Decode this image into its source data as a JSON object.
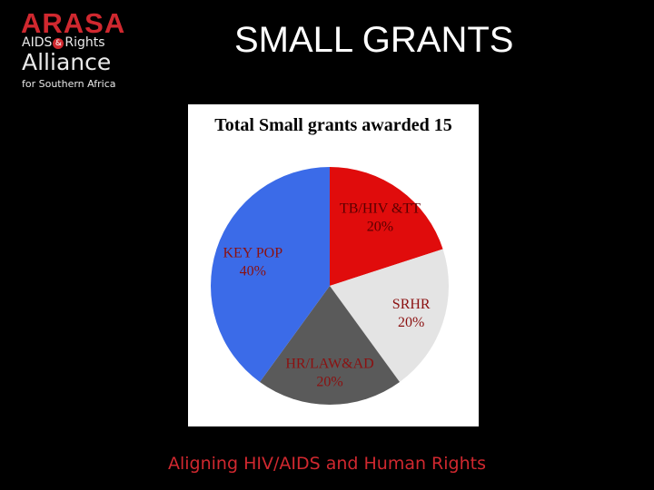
{
  "logo": {
    "name": "ARASA",
    "line2_a": "AIDS",
    "amp": "&",
    "line2_b": "Rights",
    "line3": "Alliance",
    "tagline": "for Southern Africa"
  },
  "slide": {
    "title": "SMALL GRANTS"
  },
  "footer": {
    "tagline": "Aligning HIV/AIDS and Human Rights"
  },
  "chart_data": {
    "type": "pie",
    "title": "Total Small grants awarded 15",
    "slices": [
      {
        "name": "TB/HIV &TT",
        "value": 20,
        "label": "20%",
        "color": "#e00c0c"
      },
      {
        "name": "SRHR",
        "value": 20,
        "label": "20%",
        "color": "#e4e4e4"
      },
      {
        "name": "HR/LAW&AD",
        "value": 20,
        "label": "20%",
        "color": "#5a5a5a"
      },
      {
        "name": "KEY POP",
        "value": 40,
        "label": "40%",
        "color": "#3b6be8"
      }
    ],
    "start_angle_deg": 0,
    "direction": "clockwise"
  }
}
